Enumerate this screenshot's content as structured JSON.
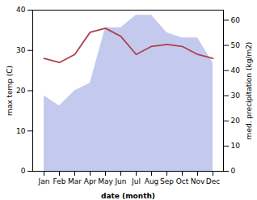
{
  "chart_data": {
    "type": "line",
    "categories": [
      "Jan",
      "Feb",
      "Mar",
      "Apr",
      "May",
      "Jun",
      "Jul",
      "Aug",
      "Sep",
      "Oct",
      "Nov",
      "Dec"
    ],
    "series": [
      {
        "type": "line",
        "color": "#b04050",
        "values": [
          28.0,
          27.0,
          29.0,
          34.5,
          35.5,
          33.5,
          29.0,
          31.0,
          31.5,
          31.0,
          29.0,
          28.0
        ]
      },
      {
        "type": "area",
        "axis": "y2",
        "color": "#b0b8e8",
        "values": [
          30,
          26,
          32,
          35,
          57,
          57,
          62,
          62,
          55,
          53,
          53,
          43
        ]
      }
    ],
    "xlabel": "date (month)",
    "ylabel": "max temp (C)",
    "y2label": "med. precipitation (kg/m2)",
    "ylim": [
      0,
      40
    ],
    "yticks": [
      0,
      10,
      20,
      30,
      40
    ],
    "y2lim": [
      0,
      64
    ],
    "y2ticks": [
      0,
      10,
      20,
      30,
      40,
      50,
      60
    ]
  }
}
